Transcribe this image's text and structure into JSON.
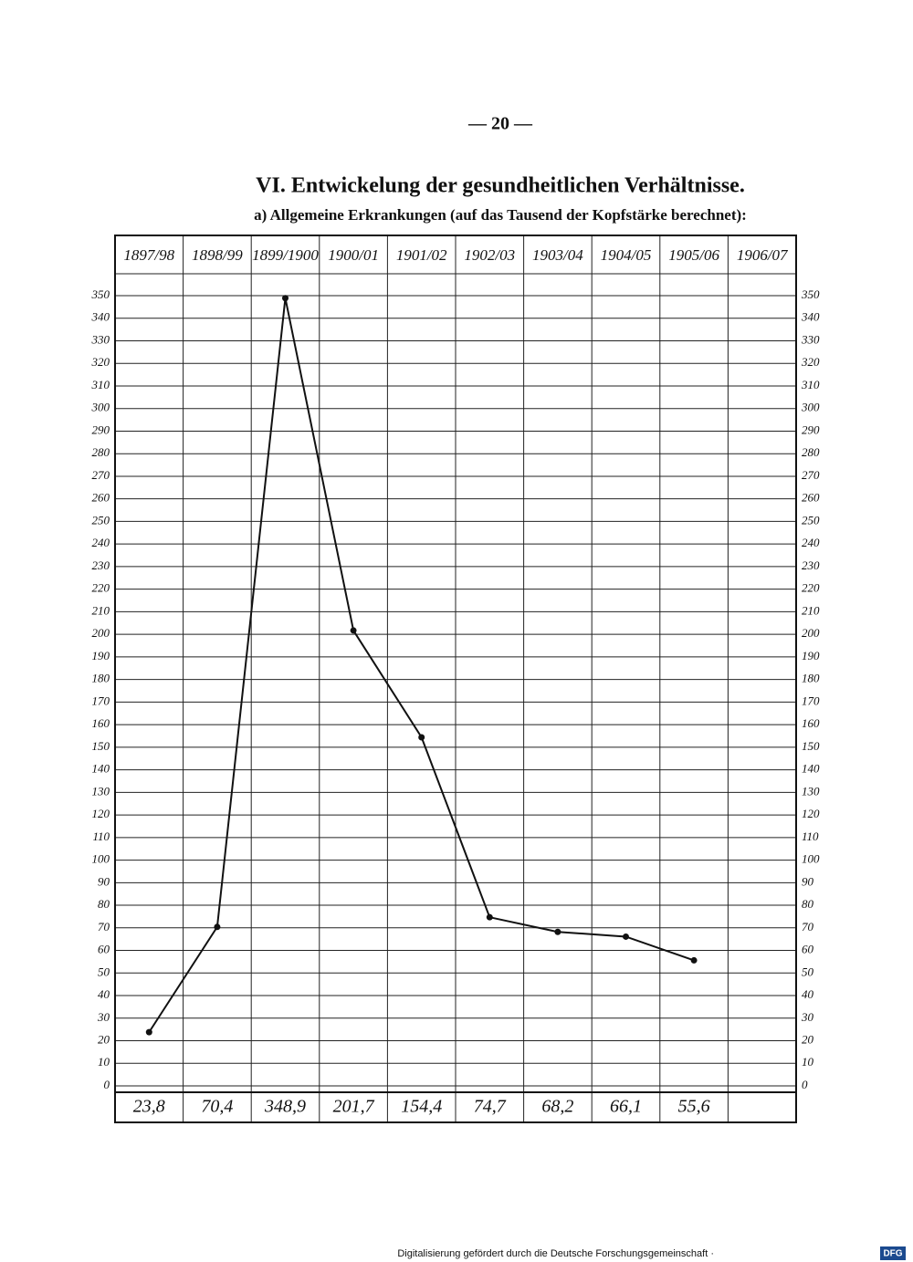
{
  "page_number": "— 20 —",
  "footer": {
    "text": "Digitalisierung gefördert durch die Deutsche Forschungsgemeinschaft ·",
    "logo": "DFG"
  },
  "chart_data": {
    "type": "line",
    "title": "VI. Entwickelung der gesundheitlichen Verhältnisse.",
    "subtitle": "a) Allgemeine Erkrankungen (auf das Tausend der Kopfstärke berechnet):",
    "categories": [
      "1897/98",
      "1898/99",
      "1899/1900",
      "1900/01",
      "1901/02",
      "1902/03",
      "1903/04",
      "1904/05",
      "1905/06",
      "1906/07"
    ],
    "values": [
      23.8,
      70.4,
      348.9,
      201.7,
      154.4,
      74.7,
      68.2,
      66.1,
      55.6,
      null
    ],
    "value_labels": [
      "23,8",
      "70,4",
      "348,9",
      "201,7",
      "154,4",
      "74,7",
      "68,2",
      "66,1",
      "55,6",
      null
    ],
    "color": "#111111",
    "ylim": [
      0,
      350
    ],
    "yticks": [
      0,
      10,
      20,
      30,
      40,
      50,
      60,
      70,
      80,
      90,
      100,
      110,
      120,
      130,
      140,
      150,
      160,
      170,
      180,
      190,
      200,
      210,
      220,
      230,
      240,
      250,
      260,
      270,
      280,
      290,
      300,
      310,
      320,
      330,
      340,
      350
    ],
    "grid": true
  }
}
